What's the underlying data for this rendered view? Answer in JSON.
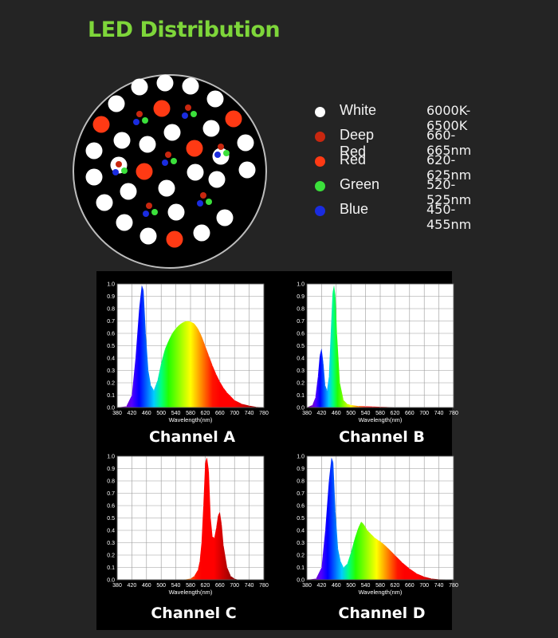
{
  "title": "LED Distribution",
  "legend": [
    {
      "name": "White",
      "range": "6000K-6500K",
      "color": "#ffffff"
    },
    {
      "name": "Deep Red",
      "range": "660-665nm",
      "color": "#c8270f"
    },
    {
      "name": "Red",
      "range": "620-625nm",
      "color": "#ff3a14"
    },
    {
      "name": "Green",
      "range": "520-525nm",
      "color": "#3be03b"
    },
    {
      "name": "Blue",
      "range": "450-455nm",
      "color": "#1a2ce0"
    }
  ],
  "chart_data": [
    {
      "type": "area",
      "label": "Channel A",
      "xlabel": "Wavelength(nm)",
      "xlim": [
        380,
        780
      ],
      "ylim": [
        0,
        1.0
      ],
      "x": [
        380,
        405,
        420,
        430,
        440,
        447,
        452,
        458,
        465,
        472,
        480,
        490,
        500,
        510,
        520,
        530,
        540,
        550,
        560,
        570,
        580,
        590,
        600,
        610,
        620,
        630,
        640,
        650,
        660,
        670,
        680,
        700,
        720,
        740,
        760,
        780
      ],
      "y": [
        0,
        0.01,
        0.1,
        0.4,
        0.8,
        0.99,
        0.95,
        0.6,
        0.3,
        0.18,
        0.14,
        0.22,
        0.36,
        0.47,
        0.54,
        0.6,
        0.64,
        0.67,
        0.69,
        0.7,
        0.695,
        0.68,
        0.64,
        0.58,
        0.5,
        0.42,
        0.34,
        0.27,
        0.21,
        0.16,
        0.12,
        0.06,
        0.03,
        0.015,
        0.005,
        0
      ]
    },
    {
      "type": "area",
      "label": "Channel B",
      "xlabel": "Wavelength(nm)",
      "xlim": [
        380,
        780
      ],
      "ylim": [
        0,
        1.0
      ],
      "x": [
        380,
        395,
        403,
        410,
        415,
        420,
        425,
        430,
        435,
        440,
        445,
        450,
        454,
        458,
        462,
        470,
        480,
        490,
        500,
        520,
        540,
        560,
        580,
        600,
        620
      ],
      "y": [
        0,
        0.02,
        0.08,
        0.25,
        0.42,
        0.48,
        0.36,
        0.18,
        0.14,
        0.25,
        0.6,
        0.93,
        0.99,
        0.9,
        0.6,
        0.2,
        0.06,
        0.03,
        0.02,
        0.012,
        0.01,
        0.008,
        0.006,
        0.004,
        0
      ]
    },
    {
      "type": "area",
      "label": "Channel C",
      "xlabel": "Wavelength(nm)",
      "xlim": [
        380,
        780
      ],
      "ylim": [
        0,
        1.0
      ],
      "x": [
        380,
        560,
        580,
        590,
        600,
        605,
        610,
        615,
        620,
        625,
        630,
        635,
        640,
        645,
        650,
        655,
        660,
        665,
        670,
        680,
        690,
        700,
        710
      ],
      "y": [
        0,
        0,
        0.01,
        0.03,
        0.08,
        0.15,
        0.3,
        0.6,
        0.95,
        0.99,
        0.88,
        0.5,
        0.35,
        0.34,
        0.42,
        0.52,
        0.55,
        0.45,
        0.28,
        0.1,
        0.03,
        0.01,
        0
      ]
    },
    {
      "type": "area",
      "label": "Channel D",
      "xlabel": "Wavelength(nm)",
      "xlim": [
        380,
        780
      ],
      "ylim": [
        0,
        1.0
      ],
      "x": [
        380,
        405,
        420,
        430,
        440,
        447,
        452,
        458,
        465,
        472,
        480,
        490,
        500,
        510,
        520,
        528,
        535,
        545,
        555,
        565,
        575,
        585,
        600,
        620,
        640,
        660,
        680,
        700,
        720,
        740,
        760
      ],
      "y": [
        0,
        0.01,
        0.1,
        0.4,
        0.8,
        0.99,
        0.95,
        0.55,
        0.25,
        0.15,
        0.1,
        0.13,
        0.22,
        0.33,
        0.42,
        0.47,
        0.45,
        0.4,
        0.37,
        0.34,
        0.32,
        0.3,
        0.26,
        0.2,
        0.14,
        0.09,
        0.05,
        0.025,
        0.01,
        0.004,
        0
      ]
    }
  ],
  "ticks": {
    "x": [
      "380",
      "420",
      "460",
      "500",
      "540",
      "580",
      "620",
      "660",
      "700",
      "740",
      "780"
    ],
    "y": [
      "0.0",
      "0.1",
      "0.2",
      "0.3",
      "0.4",
      "0.5",
      "0.6",
      "0.7",
      "0.8",
      "0.9",
      "1.0"
    ]
  }
}
